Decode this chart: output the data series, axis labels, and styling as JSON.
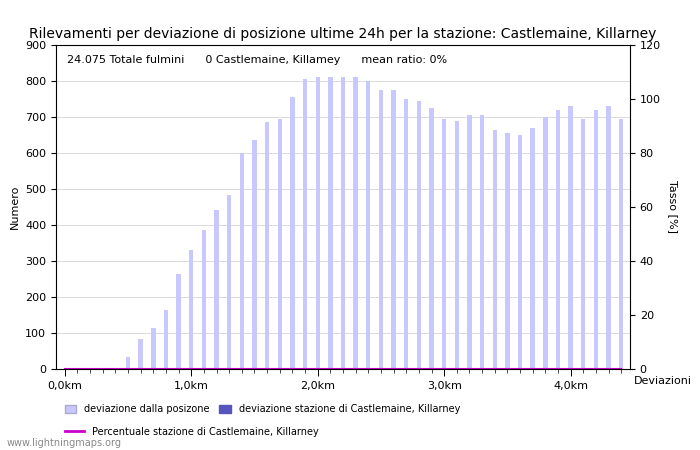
{
  "title": "Rilevamenti per deviazione di posizione ultime 24h per la stazione: Castlemaine, Killarney",
  "subtitle": "24.075 Totale fulmini      0 Castlemaine, Killamey      mean ratio: 0%",
  "ylabel_left": "Numero",
  "ylabel_right": "Tasso [%]",
  "watermark": "www.lightningmaps.org",
  "bar_color_light": "#c8c8ff",
  "bar_color_dark": "#5555bb",
  "line_color": "#cc00cc",
  "bg_color": "#ffffff",
  "grid_color": "#cccccc",
  "ylim_left": [
    0,
    900
  ],
  "ylim_right": [
    0,
    120
  ],
  "yticks_left": [
    0,
    100,
    200,
    300,
    400,
    500,
    600,
    700,
    800,
    900
  ],
  "yticks_right": [
    0,
    20,
    40,
    60,
    80,
    100,
    120
  ],
  "title_fontsize": 10,
  "subtitle_fontsize": 8,
  "axis_fontsize": 8,
  "tick_fontsize": 8,
  "heights": [
    0,
    0,
    0,
    3,
    0,
    33,
    83,
    113,
    165,
    265,
    330,
    385,
    443,
    483,
    600,
    635,
    685,
    695,
    755,
    805,
    810,
    810,
    810,
    810,
    800,
    775,
    775,
    750,
    745,
    725,
    695,
    690,
    705,
    706,
    665,
    655,
    650,
    670,
    700,
    720,
    730,
    695,
    720,
    730,
    695
  ],
  "station_heights": [
    0,
    0,
    0,
    0,
    0,
    0,
    0,
    0,
    0,
    0,
    0,
    0,
    0,
    0,
    0,
    0,
    0,
    0,
    0,
    0,
    0,
    0,
    0,
    0,
    0,
    0,
    0,
    0,
    0,
    0,
    0,
    0,
    0,
    0,
    0,
    0,
    0,
    0,
    0,
    0,
    0,
    0,
    0,
    0,
    0
  ],
  "xtick_labels": [
    "0,0km",
    "1,0km",
    "2,0km",
    "3,0km",
    "4,0km"
  ],
  "xtick_positions": [
    0,
    10,
    20,
    30,
    40
  ],
  "legend1_label1": "deviazione dalla posizone",
  "legend1_label2": "deviazione stazione di Castlemaine, Killarney",
  "legend2_label": "Percentuale stazione di Castlemaine, Killarney",
  "deviazioni_label": "Deviazioni"
}
